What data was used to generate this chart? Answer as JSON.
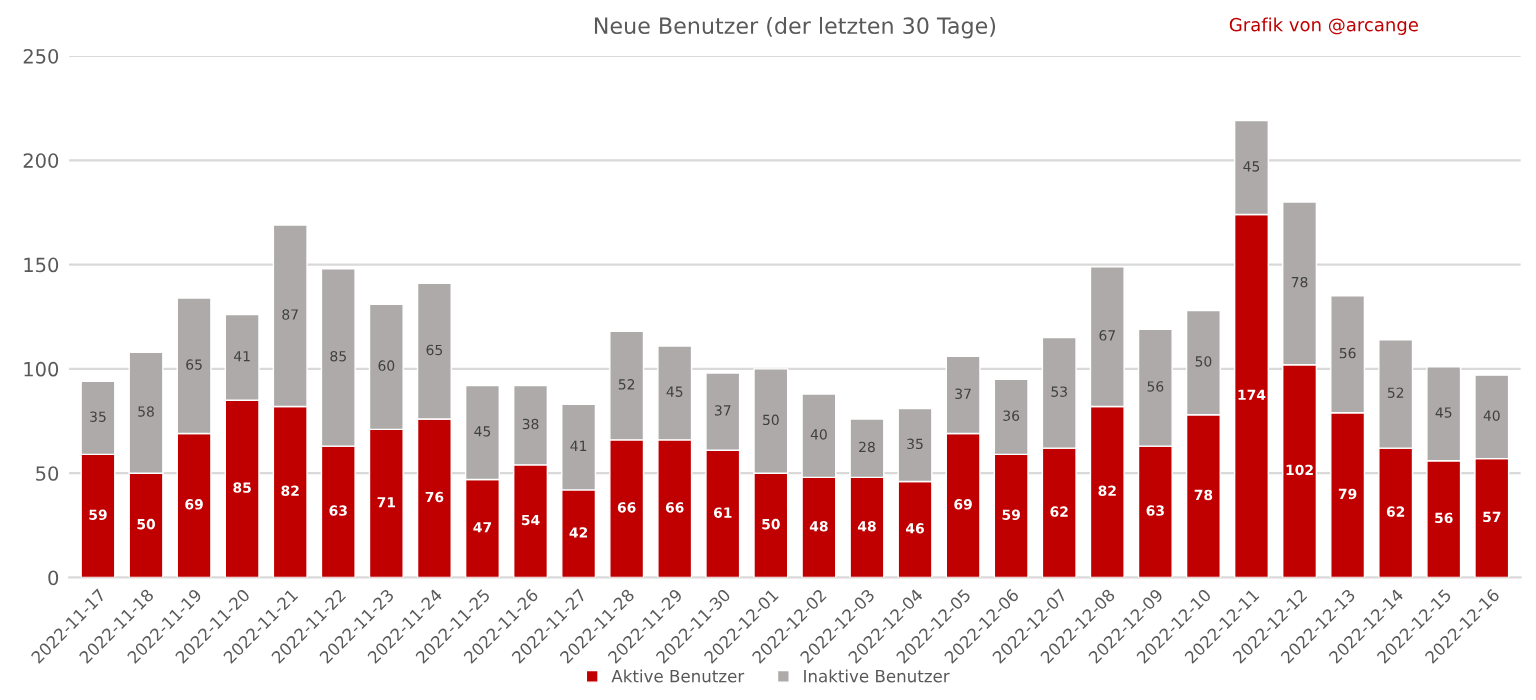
{
  "chart_data": {
    "type": "bar",
    "title": "Neue Benutzer (der letzten 30 Tage)",
    "annotations": [
      "Grafik von @arcange"
    ],
    "categories": [
      "2022-11-17",
      "2022-11-18",
      "2022-11-19",
      "2022-11-20",
      "2022-11-21",
      "2022-11-22",
      "2022-11-23",
      "2022-11-24",
      "2022-11-25",
      "2022-11-26",
      "2022-11-27",
      "2022-11-28",
      "2022-11-29",
      "2022-11-30",
      "2022-12-01",
      "2022-12-02",
      "2022-12-03",
      "2022-12-04",
      "2022-12-05",
      "2022-12-06",
      "2022-12-07",
      "2022-12-08",
      "2022-12-09",
      "2022-12-10",
      "2022-12-11",
      "2022-12-12",
      "2022-12-13",
      "2022-12-14",
      "2022-12-15",
      "2022-12-16"
    ],
    "series": [
      {
        "name": "Aktive Benutzer",
        "color": "#c00000",
        "values": [
          59,
          50,
          69,
          85,
          82,
          63,
          71,
          76,
          47,
          54,
          42,
          66,
          66,
          61,
          50,
          48,
          48,
          46,
          69,
          59,
          62,
          82,
          63,
          78,
          174,
          102,
          79,
          62,
          56,
          57
        ]
      },
      {
        "name": "Inaktive Benutzer",
        "color": "#aeaaaa",
        "values": [
          35,
          58,
          65,
          41,
          87,
          85,
          60,
          65,
          45,
          38,
          41,
          52,
          45,
          37,
          50,
          40,
          28,
          35,
          37,
          36,
          53,
          67,
          56,
          50,
          45,
          78,
          56,
          52,
          45,
          40
        ]
      }
    ],
    "stacked": true,
    "data_labels": true,
    "ylim": [
      0,
      250
    ],
    "yticks": [
      0,
      50,
      100,
      150,
      200,
      250
    ],
    "grid": "y",
    "legend": "bottom"
  }
}
